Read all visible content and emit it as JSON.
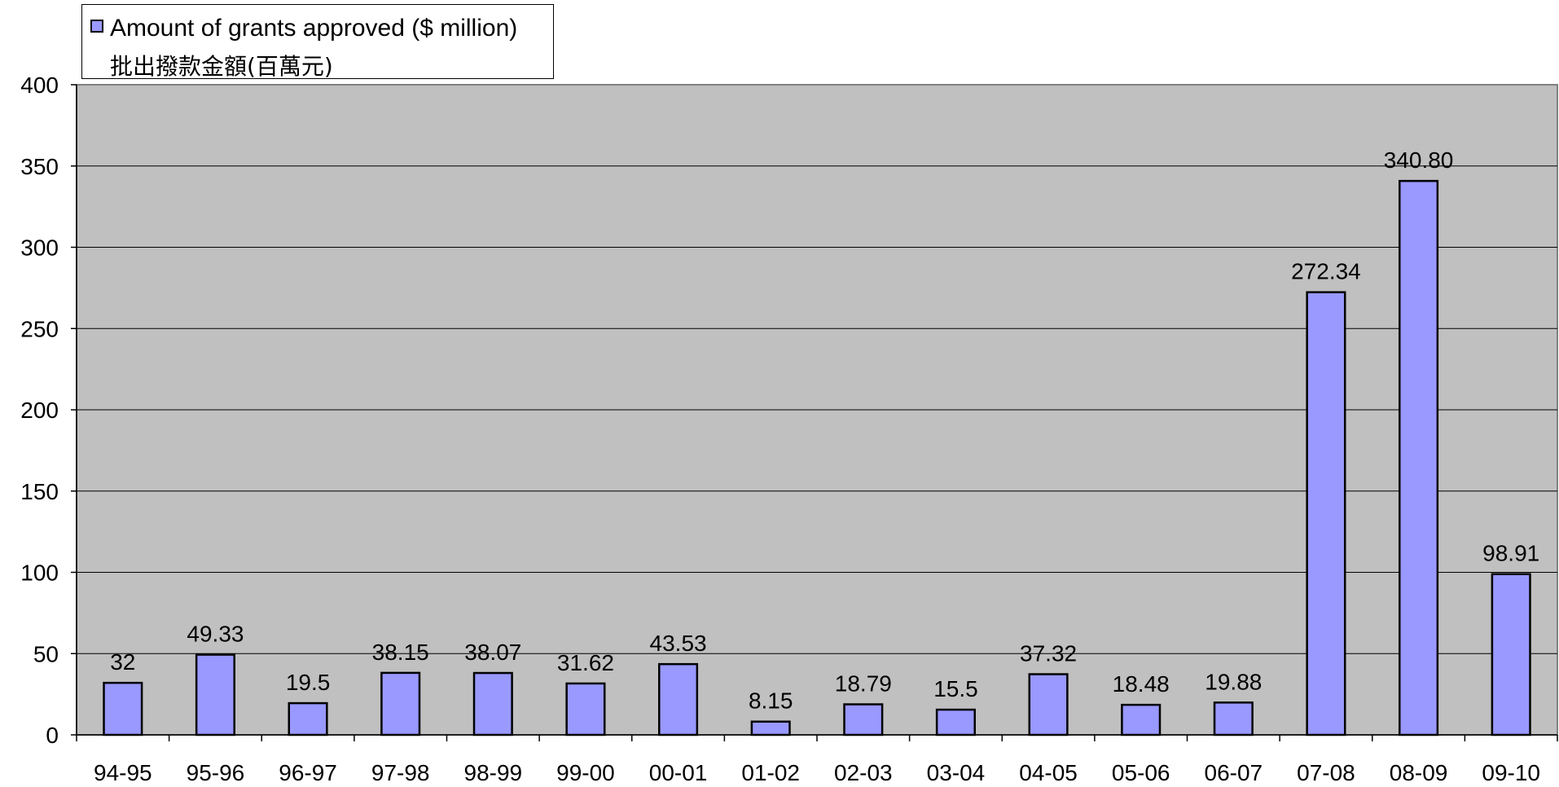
{
  "chart_data": {
    "type": "bar",
    "categories": [
      "94-95",
      "95-96",
      "96-97",
      "97-98",
      "98-99",
      "99-00",
      "00-01",
      "01-02",
      "02-03",
      "03-04",
      "04-05",
      "05-06",
      "06-07",
      "07-08",
      "08-09",
      "09-10"
    ],
    "series": [
      {
        "name": "Amount of grants approved ($ million) 批出撥款金額(百萬元)",
        "values": [
          32,
          49.33,
          19.5,
          38.15,
          38.07,
          31.62,
          43.53,
          8.15,
          18.79,
          15.5,
          37.32,
          18.48,
          19.88,
          272.34,
          340.8,
          98.91
        ]
      }
    ],
    "data_labels": [
      "32",
      "49.33",
      "19.5",
      "38.15",
      "38.07",
      "31.62",
      "43.53",
      "8.15",
      "18.79",
      "15.5",
      "37.32",
      "18.48",
      "19.88",
      "272.34",
      "340.80",
      "98.91"
    ],
    "yticks": [
      "0",
      "50",
      "100",
      "150",
      "200",
      "250",
      "300",
      "350",
      "400"
    ],
    "ylim": [
      0,
      400
    ],
    "title": "",
    "xlabel": "",
    "ylabel": "",
    "grid": true,
    "legend_position": "top-left",
    "colors": {
      "bar": "#9999ff",
      "plot_background": "#c0c0c0",
      "gridline": "#000000"
    }
  },
  "legend": {
    "line1": "Amount of grants approved ($ million)",
    "line2": "批出撥款金額(百萬元)"
  }
}
